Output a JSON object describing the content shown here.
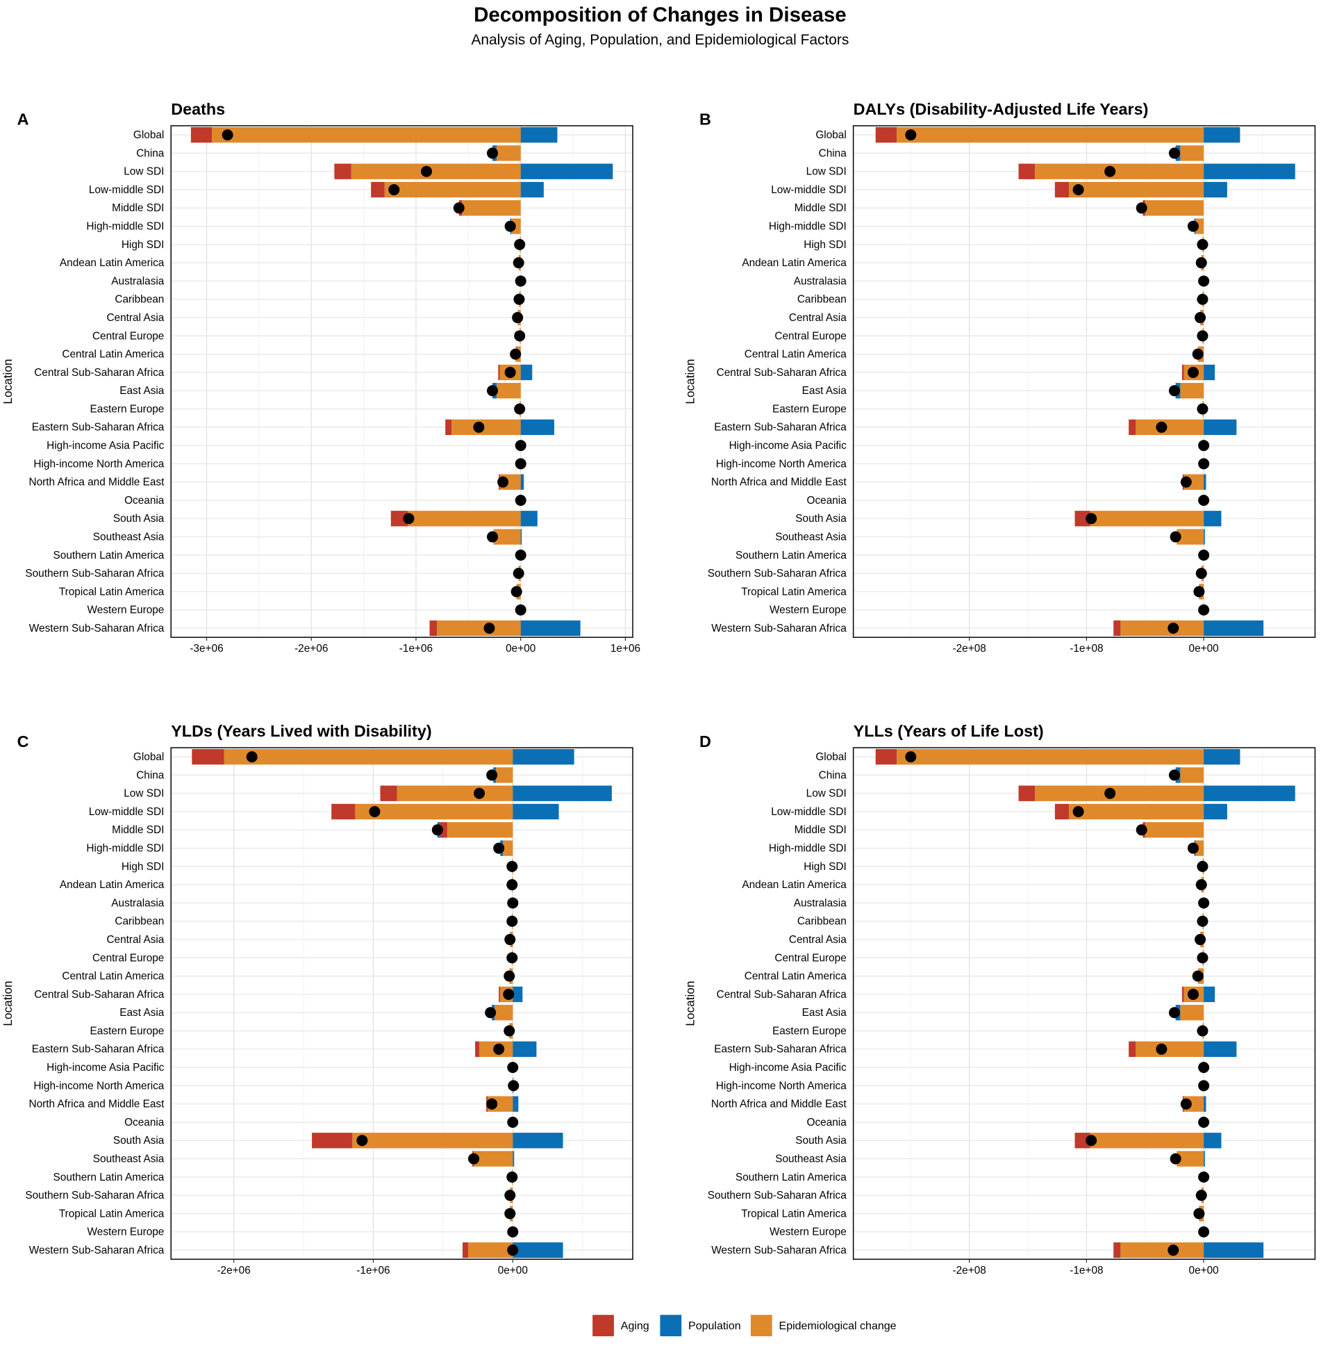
{
  "title": "Decomposition of Changes in Disease",
  "subtitle": "Analysis of Aging, Population, and Epidemiological Factors",
  "colors": {
    "Aging": "#C0392B",
    "Population": "#0A6FB5",
    "Epidemiological change": "#E0892B",
    "net": "#000000"
  },
  "legend": [
    "Aging",
    "Population",
    "Epidemiological change"
  ],
  "chart_data": [
    {
      "type": "bar",
      "stacked": true,
      "orientation": "horizontal",
      "panel": "A",
      "title": "Deaths",
      "ylabel": "Location",
      "xlabel": "",
      "xlim": [
        -3340000,
        1070000
      ],
      "xticks": [
        -3000000,
        -2000000,
        -1000000,
        0,
        1000000
      ],
      "xtick_labels": [
        "-3e+06",
        "-2e+06",
        "-1e+06",
        "0e+00",
        "1e+06"
      ],
      "categories": [
        "Global",
        "China",
        "Low SDI",
        "Low-middle SDI",
        "Middle SDI",
        "High-middle SDI",
        "High SDI",
        "Andean Latin America",
        "Australasia",
        "Caribbean",
        "Central Asia",
        "Central Europe",
        "Central Latin America",
        "Central Sub-Saharan Africa",
        "East Asia",
        "Eastern Europe",
        "Eastern Sub-Saharan Africa",
        "High-income Asia Pacific",
        "High-income North America",
        "North Africa and Middle East",
        "Oceania",
        "South Asia",
        "Southeast Asia",
        "Southern Latin America",
        "Southern Sub-Saharan Africa",
        "Tropical Latin America",
        "Western Europe",
        "Western Sub-Saharan Africa"
      ],
      "series": [
        {
          "name": "Epidemiological change",
          "values": [
            -2950000.0,
            -230000.0,
            -1620000.0,
            -1300000.0,
            -560000.0,
            -90000.0,
            -10000.0,
            -20000.0,
            0,
            -15000.0,
            -30000.0,
            -10000.0,
            -50000.0,
            -200000.0,
            -230000.0,
            -10000.0,
            -660000.0,
            0,
            0,
            -200000.0,
            0,
            -1080000.0,
            -260000.0,
            0,
            -20000.0,
            -40000.0,
            0,
            -800000.0
          ]
        },
        {
          "name": "Aging",
          "values": [
            -200000.0,
            0,
            -160000.0,
            -130000.0,
            -30000.0,
            0,
            0,
            0,
            0,
            0,
            0,
            0,
            0,
            -15000.0,
            0,
            0,
            -60000.0,
            0,
            0,
            -10000.0,
            0,
            -160000.0,
            0,
            0,
            0,
            0,
            0,
            -70000.0
          ]
        },
        {
          "name": "Population",
          "values": [
            350000.0,
            -40000.0,
            880000.0,
            220000.0,
            0,
            -10000.0,
            0,
            0,
            0,
            0,
            0,
            0,
            0,
            110000.0,
            -40000.0,
            0,
            320000.0,
            0,
            0,
            30000.0,
            0,
            160000.0,
            10000.0,
            0,
            0,
            0,
            0,
            570000.0
          ]
        }
      ],
      "net": [
        -2800000.0,
        -270000.0,
        -900000.0,
        -1210000.0,
        -590000.0,
        -100000.0,
        -10000.0,
        -20000.0,
        0,
        -15000.0,
        -30000.0,
        -10000.0,
        -50000.0,
        -100000.0,
        -270000.0,
        -10000.0,
        -400000.0,
        0,
        0,
        -170000.0,
        0,
        -1070000.0,
        -270000.0,
        0,
        -20000.0,
        -40000.0,
        0,
        -300000.0
      ]
    },
    {
      "type": "bar",
      "stacked": true,
      "orientation": "horizontal",
      "panel": "B",
      "title": "DALYs (Disability-Adjusted Life Years)",
      "ylabel": "Location",
      "xlabel": "",
      "xlim": [
        -299000000.0,
        95000000.0
      ],
      "xticks": [
        -200000000.0,
        -100000000.0,
        0
      ],
      "xtick_labels": [
        "-2e+08",
        "-1e+08",
        "0e+00"
      ],
      "categories": [
        "Global",
        "China",
        "Low SDI",
        "Low-middle SDI",
        "Middle SDI",
        "High-middle SDI",
        "High SDI",
        "Andean Latin America",
        "Australasia",
        "Caribbean",
        "Central Asia",
        "Central Europe",
        "Central Latin America",
        "Central Sub-Saharan Africa",
        "East Asia",
        "Eastern Europe",
        "Eastern Sub-Saharan Africa",
        "High-income Asia Pacific",
        "High-income North America",
        "North Africa and Middle East",
        "Oceania",
        "South Asia",
        "Southeast Asia",
        "Southern Latin America",
        "Southern Sub-Saharan Africa",
        "Tropical Latin America",
        "Western Europe",
        "Western Sub-Saharan Africa"
      ],
      "series": [
        {
          "name": "Epidemiological change",
          "values": [
            -262000000.0,
            -20000000.0,
            -144000000.0,
            -115000000.0,
            -50000000.0,
            -7000000.0,
            -1000000.0,
            -2000000.0,
            0,
            -1000000.0,
            -3000000.0,
            -1000000.0,
            -5000000.0,
            -17000000.0,
            -20000000.0,
            -1000000.0,
            -58000000.0,
            0,
            0,
            -17000000.0,
            0,
            -97000000.0,
            -23000000.0,
            0,
            -2000000.0,
            -4000000.0,
            0,
            -71000000.0
          ]
        },
        {
          "name": "Aging",
          "values": [
            -18000000.0,
            0,
            -14000000.0,
            -12000000.0,
            -2000000.0,
            0,
            0,
            0,
            0,
            0,
            0,
            0,
            0,
            -1500000.0,
            0,
            0,
            -6000000.0,
            0,
            0,
            -1000000.0,
            0,
            -13000000.0,
            0,
            0,
            0,
            0,
            0,
            -6000000.0
          ]
        },
        {
          "name": "Population",
          "values": [
            31000000.0,
            -4000000.0,
            78000000.0,
            20000000.0,
            0,
            -1000000.0,
            0,
            0,
            0,
            0,
            0,
            0,
            0,
            9500000.0,
            -4000000.0,
            0,
            28000000.0,
            0,
            0,
            2000000.0,
            0,
            15000000.0,
            1000000.0,
            0,
            0,
            0,
            0,
            51000000.0
          ]
        }
      ],
      "net": [
        -250000000.0,
        -25000000.0,
        -80000000.0,
        -107000000.0,
        -53000000.0,
        -9000000.0,
        -1000000.0,
        -2000000.0,
        0,
        -1000000.0,
        -3000000.0,
        -1000000.0,
        -5000000.0,
        -9000000.0,
        -25000000.0,
        -1000000.0,
        -36000000.0,
        0,
        0,
        -15000000.0,
        0,
        -96000000.0,
        -24000000.0,
        0,
        -2000000.0,
        -4000000.0,
        0,
        -26000000.0
      ]
    },
    {
      "type": "bar",
      "stacked": true,
      "orientation": "horizontal",
      "panel": "C",
      "title": "YLDs (Years Lived with Disability)",
      "ylabel": "Location",
      "xlabel": "",
      "xlim": [
        -2450000,
        860000
      ],
      "xticks": [
        -2000000,
        -1000000,
        0
      ],
      "xtick_labels": [
        "-2e+06",
        "-1e+06",
        "0e+00"
      ],
      "categories": [
        "Global",
        "China",
        "Low SDI",
        "Low-middle SDI",
        "Middle SDI",
        "High-middle SDI",
        "High SDI",
        "Andean Latin America",
        "Australasia",
        "Caribbean",
        "Central Asia",
        "Central Europe",
        "Central Latin America",
        "Central Sub-Saharan Africa",
        "East Asia",
        "Eastern Europe",
        "Eastern Sub-Saharan Africa",
        "High-income Asia Pacific",
        "High-income North America",
        "North Africa and Middle East",
        "Oceania",
        "South Asia",
        "Southeast Asia",
        "Southern Latin America",
        "Southern Sub-Saharan Africa",
        "Tropical Latin America",
        "Western Europe",
        "Western Sub-Saharan Africa"
      ],
      "series": [
        {
          "name": "Epidemiological change",
          "values": [
            -2070000.0,
            -120000.0,
            -830000.0,
            -1130000.0,
            -470000.0,
            -70000.0,
            -5000.0,
            -5000.0,
            0,
            -5000.0,
            -20000.0,
            -5000.0,
            -25000.0,
            -90000.0,
            -130000.0,
            -25000.0,
            -240000.0,
            0,
            0,
            -180000.0,
            0,
            -1150000.0,
            -280000.0,
            -5000.0,
            -20000.0,
            -20000.0,
            0,
            -320000.0
          ]
        },
        {
          "name": "Aging",
          "values": [
            -230000.0,
            0,
            -120000.0,
            -170000.0,
            -50000.0,
            0,
            0,
            0,
            0,
            0,
            0,
            0,
            0,
            -10000.0,
            0,
            0,
            -30000.0,
            0,
            0,
            -10000.0,
            0,
            -290000.0,
            -10000.0,
            0,
            0,
            0,
            0,
            -40000.0
          ]
        },
        {
          "name": "Population",
          "values": [
            440000.0,
            -20000.0,
            710000.0,
            330000.0,
            -20000.0,
            -20000.0,
            0,
            0,
            0,
            0,
            0,
            0,
            0,
            70000.0,
            -20000.0,
            0,
            170000.0,
            0,
            5000.0,
            40000.0,
            0,
            360000.0,
            10000.0,
            0,
            0,
            0,
            0,
            360000.0
          ]
        }
      ],
      "net": [
        -1870000.0,
        -150000.0,
        -240000.0,
        -990000.0,
        -540000.0,
        -100000.0,
        -5000.0,
        -5000.0,
        0,
        -5000.0,
        -20000.0,
        -5000.0,
        -25000.0,
        -30000.0,
        -160000.0,
        -25000.0,
        -100000.0,
        0,
        5000.0,
        -150000.0,
        0,
        -1080000.0,
        -280000.0,
        -5000.0,
        -20000.0,
        -20000.0,
        0,
        0
      ]
    },
    {
      "type": "bar",
      "stacked": true,
      "orientation": "horizontal",
      "panel": "D",
      "title": "YLLs (Years of Life Lost)",
      "ylabel": "Location",
      "xlabel": "",
      "xlim": [
        -299000000.0,
        95000000.0
      ],
      "xticks": [
        -200000000.0,
        -100000000.0,
        0
      ],
      "xtick_labels": [
        "-2e+08",
        "-1e+08",
        "0e+00"
      ],
      "categories": [
        "Global",
        "China",
        "Low SDI",
        "Low-middle SDI",
        "Middle SDI",
        "High-middle SDI",
        "High SDI",
        "Andean Latin America",
        "Australasia",
        "Caribbean",
        "Central Asia",
        "Central Europe",
        "Central Latin America",
        "Central Sub-Saharan Africa",
        "East Asia",
        "Eastern Europe",
        "Eastern Sub-Saharan Africa",
        "High-income Asia Pacific",
        "High-income North America",
        "North Africa and Middle East",
        "Oceania",
        "South Asia",
        "Southeast Asia",
        "Southern Latin America",
        "Southern Sub-Saharan Africa",
        "Tropical Latin America",
        "Western Europe",
        "Western Sub-Saharan Africa"
      ],
      "series": [
        {
          "name": "Epidemiological change",
          "values": [
            -262000000.0,
            -20000000.0,
            -144000000.0,
            -115000000.0,
            -50000000.0,
            -7000000.0,
            -1000000.0,
            -2000000.0,
            0,
            -1000000.0,
            -3000000.0,
            -1000000.0,
            -5000000.0,
            -17000000.0,
            -20000000.0,
            -1000000.0,
            -58000000.0,
            0,
            0,
            -17000000.0,
            0,
            -97000000.0,
            -23000000.0,
            0,
            -2000000.0,
            -4000000.0,
            0,
            -71000000.0
          ]
        },
        {
          "name": "Aging",
          "values": [
            -18000000.0,
            0,
            -14000000.0,
            -12000000.0,
            -2000000.0,
            0,
            0,
            0,
            0,
            0,
            0,
            0,
            0,
            -1500000.0,
            0,
            0,
            -6000000.0,
            0,
            0,
            -1000000.0,
            0,
            -13000000.0,
            0,
            0,
            0,
            0,
            0,
            -6000000.0
          ]
        },
        {
          "name": "Population",
          "values": [
            31000000.0,
            -4000000.0,
            78000000.0,
            20000000.0,
            0,
            -1000000.0,
            0,
            0,
            0,
            0,
            0,
            0,
            0,
            9500000.0,
            -4000000.0,
            0,
            28000000.0,
            0,
            0,
            2000000.0,
            0,
            15000000.0,
            1000000.0,
            0,
            0,
            0,
            0,
            51000000.0
          ]
        }
      ],
      "net": [
        -250000000.0,
        -25000000.0,
        -80000000.0,
        -107000000.0,
        -53000000.0,
        -9000000.0,
        -1000000.0,
        -2000000.0,
        0,
        -1000000.0,
        -3000000.0,
        -1000000.0,
        -5000000.0,
        -9000000.0,
        -25000000.0,
        -1000000.0,
        -36000000.0,
        0,
        0,
        -15000000.0,
        0,
        -96000000.0,
        -24000000.0,
        0,
        -2000000.0,
        -4000000.0,
        0,
        -26000000.0
      ]
    }
  ]
}
